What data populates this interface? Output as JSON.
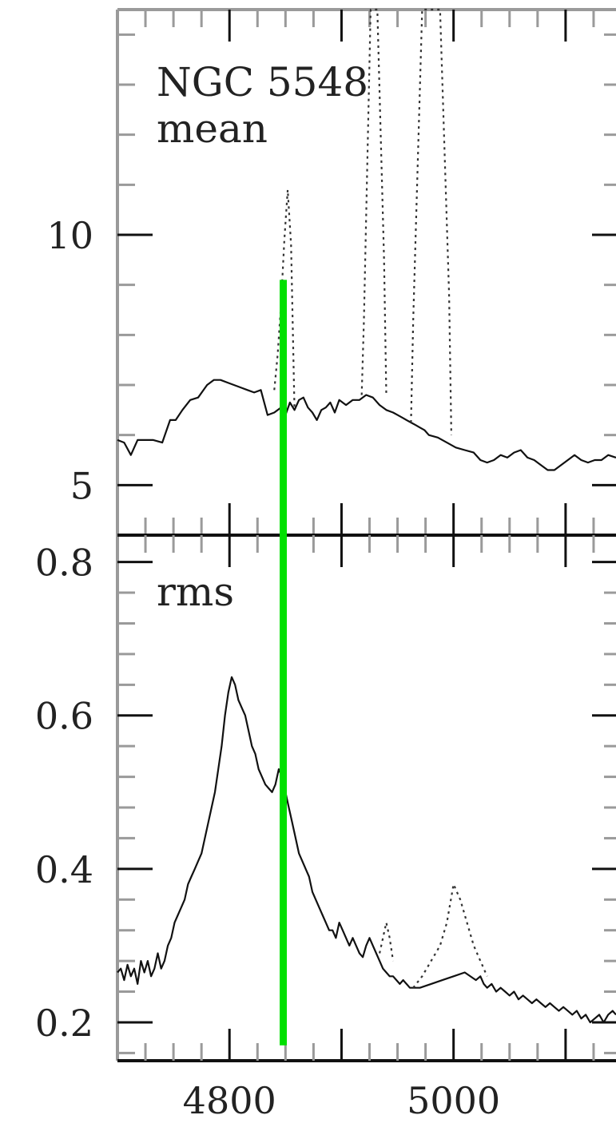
{
  "chart_data": [
    {
      "type": "line",
      "panel": "top",
      "title": "",
      "annotation": [
        "NGC 5548",
        "mean"
      ],
      "xlabel": "",
      "ylabel": "",
      "xlim": [
        4700,
        5145
      ],
      "ylim": [
        4.0,
        14.5
      ],
      "yticks": [
        5,
        10
      ],
      "ytick_labels": [
        "5",
        "10"
      ],
      "grid": false,
      "series": [
        {
          "style": "solid",
          "color": "#111111",
          "x": [
            4700,
            4706,
            4712,
            4718,
            4725,
            4732,
            4740,
            4747,
            4752,
            4758,
            4765,
            4772,
            4780,
            4786,
            4792,
            4798,
            4804,
            4810,
            4816,
            4822,
            4828,
            4834,
            4840,
            4846,
            4850,
            4854,
            4858,
            4862,
            4866,
            4870,
            4874,
            4878,
            4882,
            4886,
            4890,
            4894,
            4898,
            4904,
            4910,
            4916,
            4922,
            4928,
            4934,
            4940,
            4946,
            4950,
            4954,
            4958,
            4962,
            4966,
            4970,
            4974,
            4978,
            4986,
            4994,
            5002,
            5010,
            5018,
            5024,
            5030,
            5036,
            5042,
            5048,
            5054,
            5060,
            5066,
            5072,
            5078,
            5084,
            5090,
            5096,
            5102,
            5108,
            5114,
            5120,
            5126,
            5132,
            5138,
            5145
          ],
          "y": [
            5.9,
            5.85,
            5.6,
            5.9,
            5.9,
            5.9,
            5.85,
            6.3,
            6.3,
            6.5,
            6.7,
            6.75,
            7.0,
            7.1,
            7.1,
            7.05,
            7.0,
            6.95,
            6.9,
            6.85,
            6.9,
            6.4,
            6.45,
            6.55,
            6.4,
            6.65,
            6.5,
            6.7,
            6.75,
            6.55,
            6.45,
            6.3,
            6.5,
            6.55,
            6.65,
            6.45,
            6.7,
            6.6,
            6.7,
            6.7,
            6.8,
            6.75,
            6.6,
            6.5,
            6.45,
            6.4,
            6.35,
            6.3,
            6.25,
            6.2,
            6.15,
            6.1,
            6.0,
            5.95,
            5.85,
            5.75,
            5.7,
            5.65,
            5.5,
            5.45,
            5.5,
            5.6,
            5.55,
            5.65,
            5.7,
            5.55,
            5.5,
            5.4,
            5.3,
            5.3,
            5.4,
            5.5,
            5.6,
            5.5,
            5.45,
            5.5,
            5.5,
            5.6,
            5.55
          ]
        },
        {
          "style": "dotted",
          "color": "#333333",
          "x": [
            4840,
            4843,
            4846,
            4849,
            4852,
            4855,
            4858
          ],
          "y": [
            6.9,
            7.6,
            8.6,
            9.9,
            10.9,
            9.8,
            6.5
          ]
        },
        {
          "style": "dotted",
          "color": "#333333",
          "x": [
            4918,
            4920,
            4926,
            4932,
            4938,
            4940
          ],
          "y": [
            6.8,
            8.3,
            14.5,
            14.5,
            9.5,
            6.8
          ]
        },
        {
          "style": "dotted",
          "color": "#333333",
          "x": [
            4962,
            4964,
            4972,
            4988,
            4996,
            4998
          ],
          "y": [
            6.25,
            8.3,
            14.5,
            14.5,
            8.8,
            6.0
          ]
        }
      ]
    },
    {
      "type": "line",
      "panel": "bottom",
      "title": "",
      "annotation": [
        "rms"
      ],
      "xlabel": "",
      "ylabel": "",
      "xlim": [
        4700,
        5145
      ],
      "ylim": [
        0.15,
        0.835
      ],
      "yticks": [
        0.2,
        0.4,
        0.6,
        0.8
      ],
      "ytick_labels": [
        "0.2",
        "0.4",
        "0.6",
        "0.8"
      ],
      "xticks": [
        4800,
        5000
      ],
      "xtick_labels": [
        "4800",
        "5000"
      ],
      "grid": false,
      "series": [
        {
          "style": "solid",
          "color": "#111111",
          "x": [
            4700,
            4703,
            4706,
            4709,
            4712,
            4715,
            4718,
            4721,
            4724,
            4727,
            4730,
            4733,
            4736,
            4739,
            4742,
            4745,
            4748,
            4751,
            4754,
            4757,
            4760,
            4763,
            4766,
            4769,
            4772,
            4775,
            4778,
            4781,
            4784,
            4787,
            4790,
            4793,
            4796,
            4799,
            4802,
            4805,
            4808,
            4811,
            4814,
            4817,
            4820,
            4823,
            4826,
            4829,
            4832,
            4835,
            4838,
            4841,
            4844,
            4847,
            4850,
            4853,
            4856,
            4859,
            4862,
            4865,
            4868,
            4871,
            4874,
            4877,
            4880,
            4883,
            4886,
            4889,
            4892,
            4895,
            4898,
            4901,
            4904,
            4907,
            4910,
            4913,
            4916,
            4919,
            4922,
            4925,
            4928,
            4931,
            4934,
            4937,
            4940,
            4943,
            4946,
            4949,
            4952,
            4955,
            4958,
            4961,
            4964,
            4970,
            4980,
            4990,
            5000,
            5010,
            5020,
            5024,
            5027,
            5030,
            5034,
            5038,
            5042,
            5046,
            5050,
            5054,
            5058,
            5062,
            5066,
            5070,
            5074,
            5078,
            5082,
            5086,
            5090,
            5094,
            5098,
            5102,
            5106,
            5110,
            5114,
            5118,
            5122,
            5126,
            5130,
            5134,
            5138,
            5142,
            5145
          ],
          "y": [
            0.265,
            0.27,
            0.255,
            0.275,
            0.26,
            0.27,
            0.25,
            0.28,
            0.265,
            0.28,
            0.26,
            0.27,
            0.29,
            0.27,
            0.28,
            0.3,
            0.31,
            0.33,
            0.34,
            0.35,
            0.36,
            0.38,
            0.39,
            0.4,
            0.41,
            0.42,
            0.44,
            0.46,
            0.48,
            0.5,
            0.53,
            0.56,
            0.6,
            0.63,
            0.65,
            0.64,
            0.62,
            0.61,
            0.6,
            0.58,
            0.56,
            0.55,
            0.53,
            0.52,
            0.51,
            0.505,
            0.5,
            0.51,
            0.53,
            0.52,
            0.5,
            0.48,
            0.46,
            0.44,
            0.42,
            0.41,
            0.4,
            0.39,
            0.37,
            0.36,
            0.35,
            0.34,
            0.33,
            0.32,
            0.32,
            0.31,
            0.33,
            0.32,
            0.31,
            0.3,
            0.31,
            0.3,
            0.29,
            0.285,
            0.3,
            0.31,
            0.3,
            0.29,
            0.28,
            0.27,
            0.265,
            0.26,
            0.26,
            0.255,
            0.25,
            0.255,
            0.25,
            0.245,
            0.245,
            0.245,
            0.25,
            0.255,
            0.26,
            0.265,
            0.255,
            0.26,
            0.25,
            0.245,
            0.25,
            0.24,
            0.245,
            0.24,
            0.235,
            0.24,
            0.23,
            0.235,
            0.23,
            0.225,
            0.23,
            0.225,
            0.22,
            0.225,
            0.22,
            0.215,
            0.22,
            0.215,
            0.21,
            0.215,
            0.205,
            0.21,
            0.2,
            0.205,
            0.21,
            0.2,
            0.21,
            0.215,
            0.21
          ]
        },
        {
          "style": "dotted",
          "color": "#333333",
          "x": [
            4934,
            4937,
            4940,
            4943,
            4946
          ],
          "y": [
            0.29,
            0.31,
            0.33,
            0.31,
            0.28
          ]
        },
        {
          "style": "dotted",
          "color": "#333333",
          "x": [
            4964,
            4972,
            4980,
            4988,
            4994,
            5000,
            5006,
            5012,
            5018,
            5024,
            5030
          ],
          "y": [
            0.245,
            0.26,
            0.28,
            0.3,
            0.33,
            0.38,
            0.36,
            0.33,
            0.3,
            0.28,
            0.26
          ]
        }
      ]
    }
  ],
  "marker": {
    "color": "#00e000",
    "x": 4848,
    "y_top": 9.1,
    "y_bottom": 0.17
  }
}
